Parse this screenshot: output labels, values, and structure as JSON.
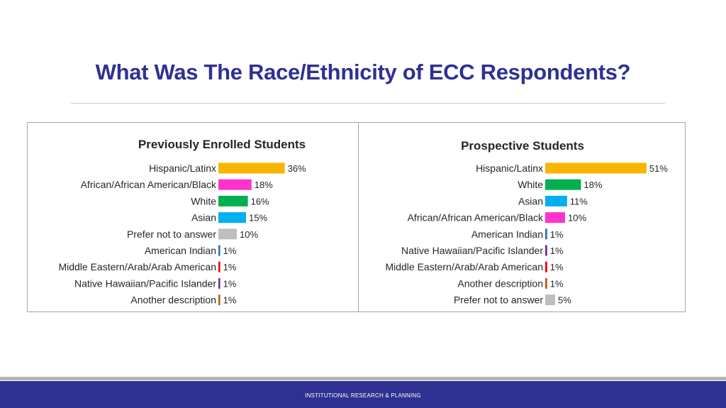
{
  "slide": {
    "title": "What Was The Race/Ethnicity of ECC Respondents?",
    "footer": "INSTITUTIONAL RESEARCH & PLANNING"
  },
  "chart_data": [
    {
      "type": "bar",
      "orientation": "horizontal",
      "title": "Previously Enrolled Students",
      "value_format": "percent",
      "grid": false,
      "legend": "none",
      "categories": [
        "Hispanic/Latinx",
        "African/African American/Black",
        "White",
        "Asian",
        "Prefer not to answer",
        "American Indian",
        "Middle Eastern/Arab/Arab American",
        "Native Hawaiian/Pacific Islander",
        "Another description"
      ],
      "values": [
        36,
        18,
        16,
        15,
        10,
        1,
        1,
        1,
        1
      ],
      "labels": [
        "36%",
        "18%",
        "16%",
        "15%",
        "10%",
        "1%",
        "1%",
        "1%",
        "1%"
      ],
      "colors": [
        "#f7b500",
        "#ff33cc",
        "#00b050",
        "#00b0f0",
        "#bfbfbf",
        "#2e75b6",
        "#ff0000",
        "#7030a0",
        "#c55a11"
      ]
    },
    {
      "type": "bar",
      "orientation": "horizontal",
      "title": "Prospective Students",
      "value_format": "percent",
      "grid": false,
      "legend": "none",
      "categories": [
        "Hispanic/Latinx",
        "White",
        "Asian",
        "African/African American/Black",
        "American Indian",
        "Native Hawaiian/Pacific Islander",
        "Middle Eastern/Arab/Arab American",
        "Another description",
        "Prefer not to answer"
      ],
      "values": [
        51,
        18,
        11,
        10,
        1,
        1,
        1,
        1,
        5
      ],
      "labels": [
        "51%",
        "18%",
        "11%",
        "10%",
        "1%",
        "1%",
        "1%",
        "1%",
        "5%"
      ],
      "colors": [
        "#f7b500",
        "#00b050",
        "#00b0f0",
        "#ff33cc",
        "#2e75b6",
        "#7030a0",
        "#ff0000",
        "#c55a11",
        "#bfbfbf"
      ]
    }
  ]
}
